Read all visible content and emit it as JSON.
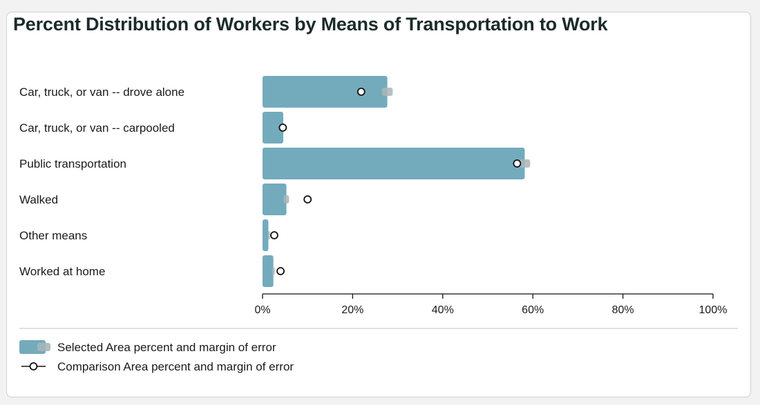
{
  "chart_data": {
    "type": "bar",
    "orientation": "horizontal",
    "title": "Percent Distribution of Workers by Means of Transportation to Work",
    "categories": [
      "Car, truck, or van -- drove alone",
      "Car, truck, or van -- carpooled",
      "Public transportation",
      "Walked",
      "Other means",
      "Worked at home"
    ],
    "series": [
      {
        "name": "Selected Area percent and margin of error",
        "values": [
          27.7,
          4.6,
          58.2,
          5.3,
          1.3,
          2.4
        ],
        "margin_of_error": [
          1.2,
          0.2,
          1.2,
          0.6,
          0.1,
          0.3
        ]
      },
      {
        "name": "Comparison Area percent and margin of error",
        "values": [
          21.9,
          4.5,
          56.5,
          10.0,
          2.6,
          4.0
        ]
      }
    ],
    "xlim": [
      0,
      100
    ],
    "xticks": [
      "0%",
      "20%",
      "40%",
      "60%",
      "80%",
      "100%"
    ],
    "tick_values": [
      0,
      20,
      40,
      60,
      80,
      100
    ],
    "grid": false,
    "legend_placement": "bottom-left",
    "colors": {
      "bar": "#73abbd",
      "moe": "#a9b5b9",
      "marker_stroke": "#111111",
      "axis": "#111111"
    }
  }
}
